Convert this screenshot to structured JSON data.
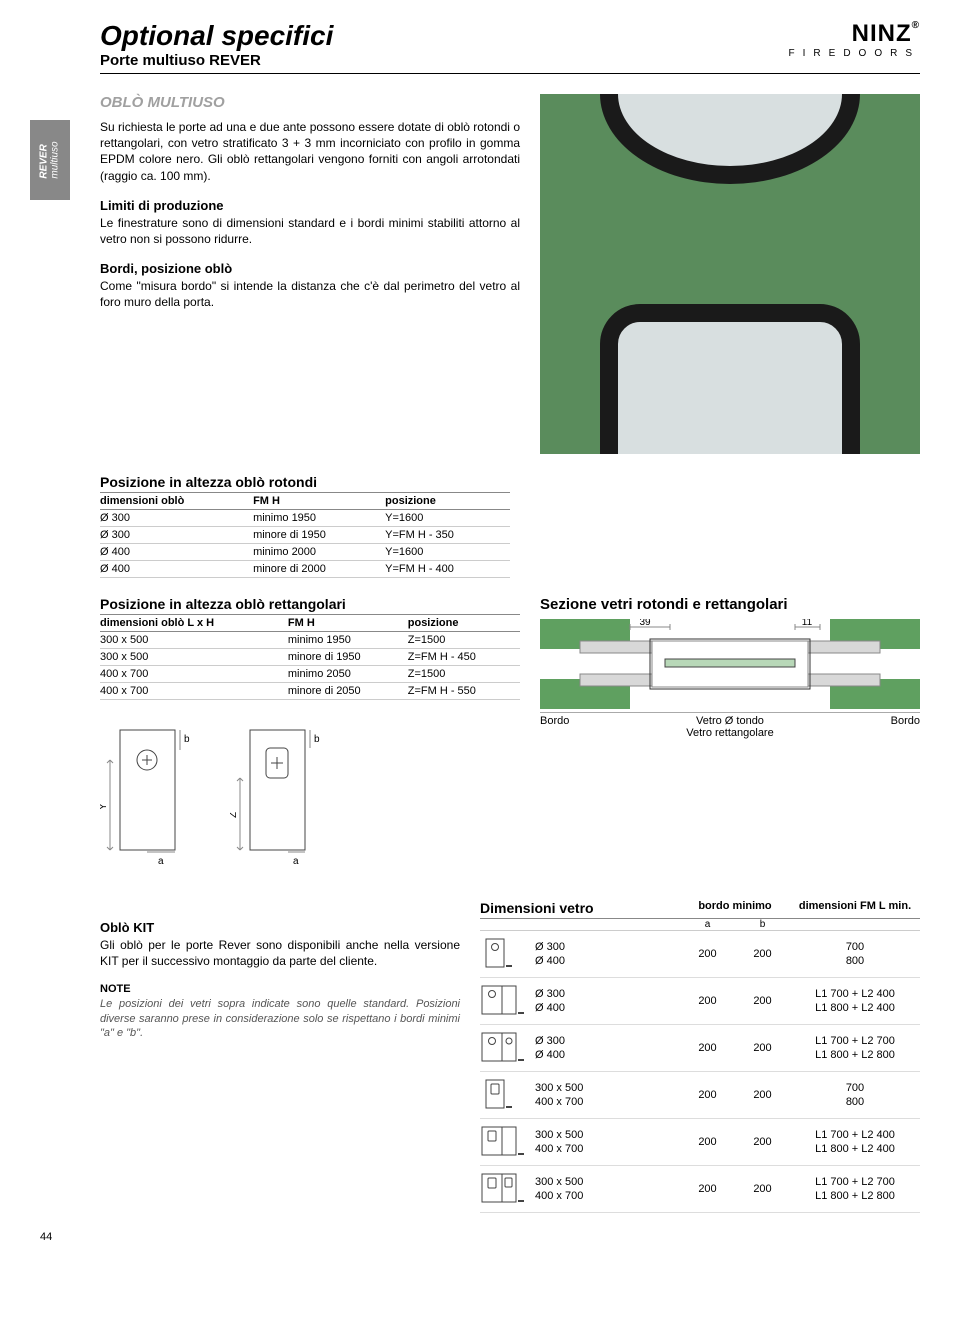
{
  "header": {
    "title": "Optional specifici",
    "subtitle": "Porte multiuso REVER",
    "logo_main": "NINZ",
    "logo_reg": "®",
    "logo_sub": "FIREDOORS"
  },
  "sidetab": {
    "line1": "REVER",
    "line2": "multiuso"
  },
  "intro": {
    "heading": "OBLÒ MULTIUSO",
    "p1": "Su richiesta le porte ad una e due ante possono essere dotate di oblò rotondi o rettangolari, con vetro stratificato 3 + 3 mm incorniciato con profilo in gomma EPDM colore nero. Gli oblò rettangolari vengono forniti con angoli arrotondati (raggio ca. 100 mm).",
    "h2": "Limiti di produzione",
    "p2": "Le finestrature sono di dimensioni standard e i bordi minimi stabiliti attorno al vetro non si possono ridurre.",
    "h3": "Bordi, posizione oblò",
    "p3": "Come \"misura bordo\" si intende la distanza che c'è dal perimetro del vetro al foro muro della porta."
  },
  "table_rot": {
    "title": "Posizione in altezza oblò rotondi",
    "cols": [
      "dimensioni oblò",
      "FM H",
      "posizione"
    ],
    "rows": [
      [
        "Ø 300",
        "minimo 1950",
        "Y=1600"
      ],
      [
        "Ø 300",
        "minore di 1950",
        "Y=FM H - 350"
      ],
      [
        "Ø 400",
        "minimo 2000",
        "Y=1600"
      ],
      [
        "Ø 400",
        "minore di 2000",
        "Y=FM H - 400"
      ]
    ]
  },
  "table_rect": {
    "title": "Posizione in altezza oblò rettangolari",
    "cols": [
      "dimensioni oblò L x H",
      "FM H",
      "posizione"
    ],
    "rows": [
      [
        "300 x 500",
        "minimo 1950",
        "Z=1500"
      ],
      [
        "300 x 500",
        "minore di 1950",
        "Z=FM H - 450"
      ],
      [
        "400 x 700",
        "minimo 2050",
        "Z=1500"
      ],
      [
        "400 x 700",
        "minore di 2050",
        "Z=FM H - 550"
      ]
    ]
  },
  "section": {
    "title": "Sezione vetri rotondi e rettangolari",
    "dim_left": "39",
    "dim_right": "11",
    "lbl_bordo": "Bordo",
    "lbl_vetro1": "Vetro Ø tondo",
    "lbl_vetro2": "Vetro rettangolare",
    "colors": {
      "bg": "#5fa060",
      "frame": "#b8b8b8",
      "line": "#444"
    }
  },
  "kit": {
    "title": "Oblò KIT",
    "text": "Gli oblò per le porte Rever sono disponibili anche nella versione KIT per il successivo montaggio da parte del cliente.",
    "note_head": "NOTE",
    "note_text": "Le posizioni dei vetri sopra indicate sono quelle standard. Posizioni diverse saranno prese in considerazione solo se rispettano i bordi minimi \"a\" e \"b\"."
  },
  "dimtable": {
    "title": "Dimensioni vetro",
    "col_bordo": "bordo minimo",
    "col_fml": "dimensioni FM L min.",
    "sub_a": "a",
    "sub_b": "b",
    "rows": [
      {
        "type": "round",
        "doors": 1,
        "sizes": [
          "Ø 300",
          "Ø 400"
        ],
        "a": "200",
        "b": "200",
        "fml": [
          "700",
          "800"
        ]
      },
      {
        "type": "round",
        "doors": 2,
        "sizes": [
          "Ø 300",
          "Ø 400"
        ],
        "a": "200",
        "b": "200",
        "fml": [
          "L1 700 + L2 400",
          "L1 800 + L2 400"
        ]
      },
      {
        "type": "round2",
        "doors": 2,
        "sizes": [
          "Ø 300",
          "Ø 400"
        ],
        "a": "200",
        "b": "200",
        "fml": [
          "L1 700 + L2 700",
          "L1 800 + L2 800"
        ]
      },
      {
        "type": "rect",
        "doors": 1,
        "sizes": [
          "300 x 500",
          "400 x 700"
        ],
        "a": "200",
        "b": "200",
        "fml": [
          "700",
          "800"
        ]
      },
      {
        "type": "rect",
        "doors": 2,
        "sizes": [
          "300 x 500",
          "400 x 700"
        ],
        "a": "200",
        "b": "200",
        "fml": [
          "L1 700 + L2 400",
          "L1 800 + L2 400"
        ]
      },
      {
        "type": "rect2",
        "doors": 2,
        "sizes": [
          "300 x 500",
          "400 x 700"
        ],
        "a": "200",
        "b": "200",
        "fml": [
          "L1 700 + L2 700",
          "L1 800 + L2 800"
        ]
      }
    ]
  },
  "door_dims": {
    "y": "Y",
    "z": "Z",
    "a": "a",
    "b": "b"
  },
  "page_number": "44"
}
